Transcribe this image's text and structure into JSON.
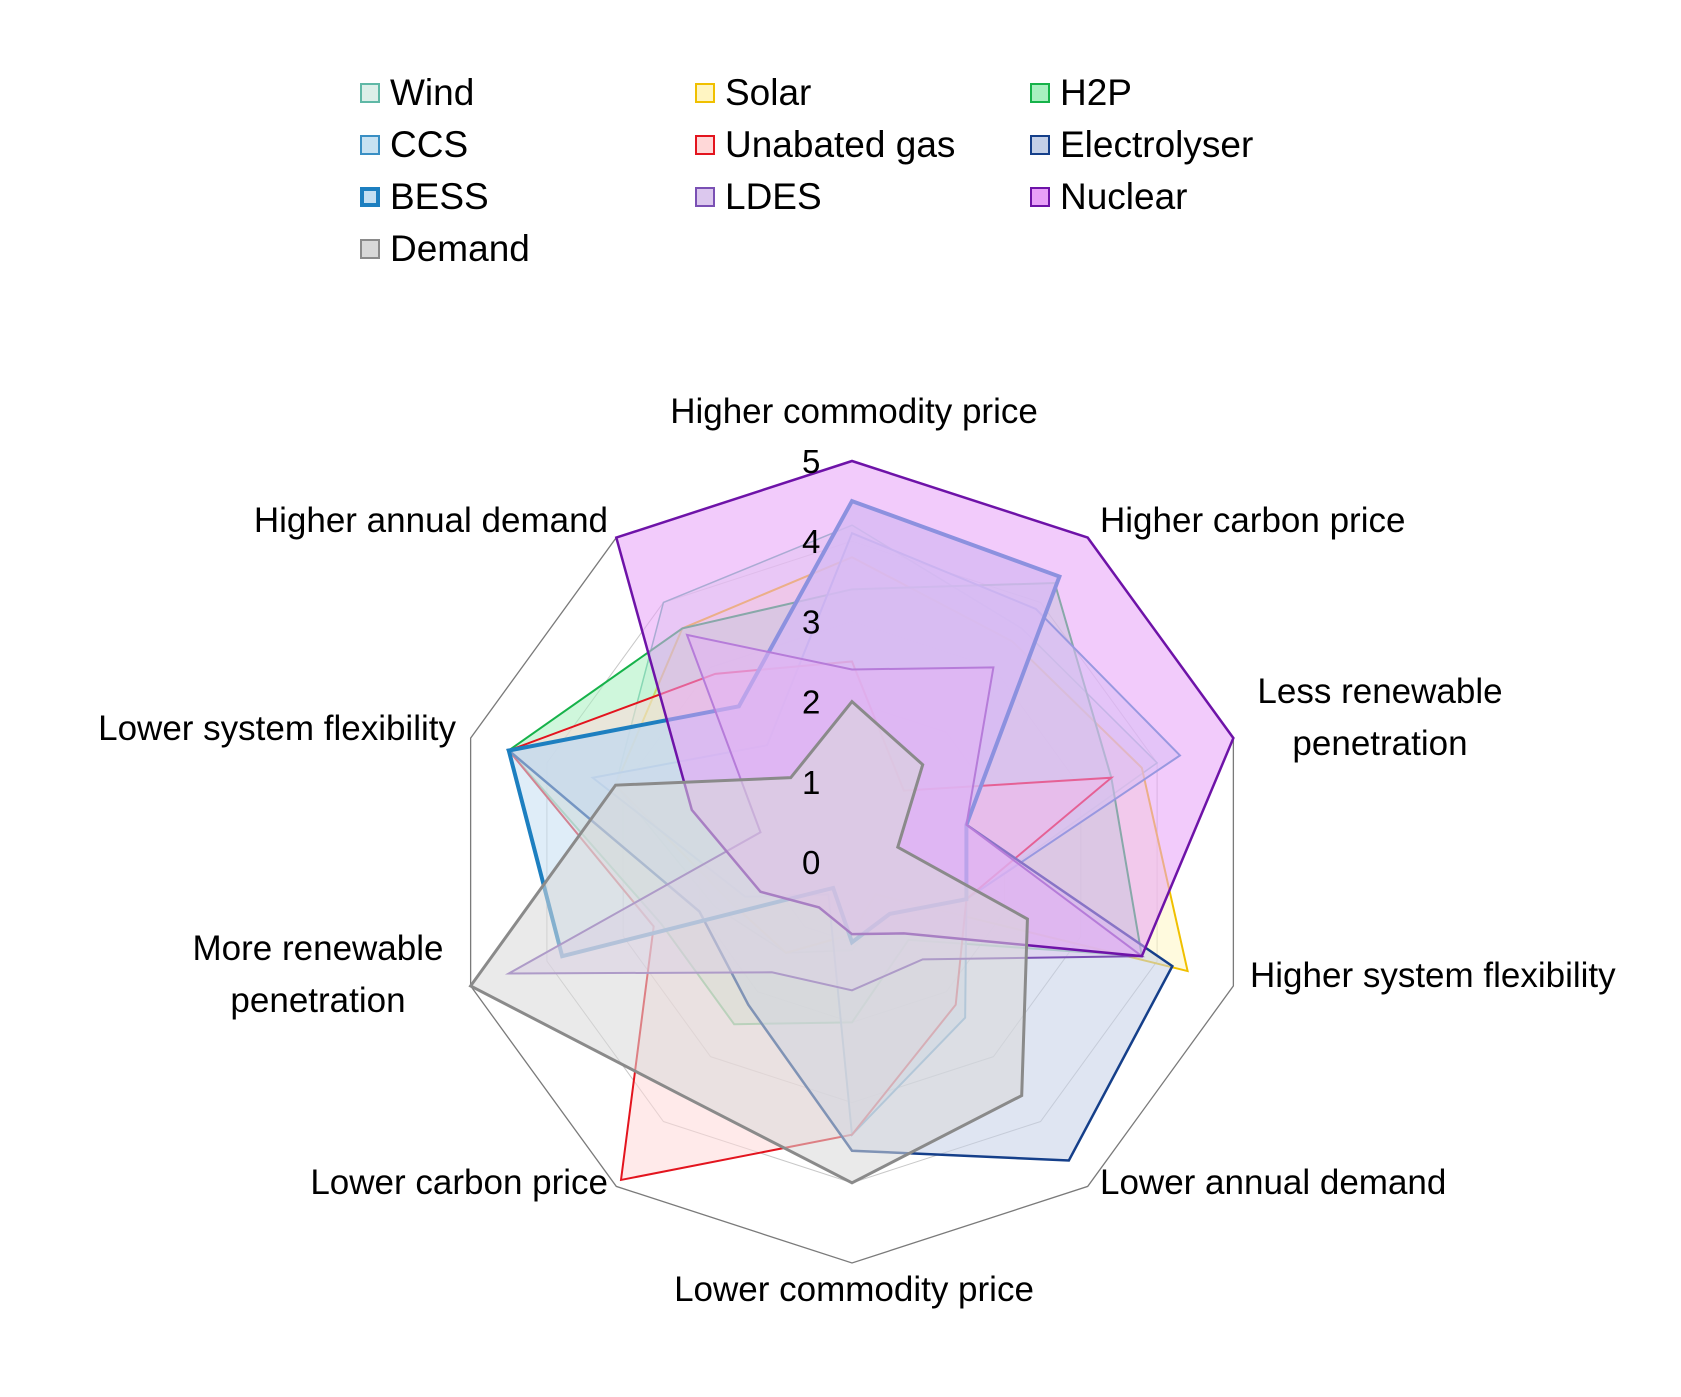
{
  "chart_data": {
    "type": "radar",
    "axes": [
      "Higher commodity price",
      "Higher carbon price",
      "Less renewable penetration",
      "Higher system flexibility",
      "Lower annual demand",
      "Lower commodity price",
      "Lower carbon price",
      "More renewable penetration",
      "Lower system flexibility",
      "Higher annual demand"
    ],
    "axis_label_lines": [
      [
        "Higher commodity price"
      ],
      [
        "Higher carbon price"
      ],
      [
        "Less renewable",
        "penetration"
      ],
      [
        "Higher system flexibility"
      ],
      [
        "Lower annual demand"
      ],
      [
        "Lower commodity price"
      ],
      [
        "Lower carbon price"
      ],
      [
        "More renewable",
        "penetration"
      ],
      [
        "Lower system flexibility"
      ],
      [
        "Higher annual demand"
      ]
    ],
    "rlim": [
      0,
      5
    ],
    "ticks": [
      "0",
      "1",
      "2",
      "3",
      "4",
      "5"
    ],
    "grid": true,
    "legend_position": "top",
    "series": [
      {
        "name": "Wind",
        "color": "#5fb8a6",
        "fill": "#dcefe9",
        "stroke_width": 1.5,
        "values": [
          4.2,
          3.6,
          4.0,
          1.5,
          0.7,
          1.1,
          1.4,
          1.8,
          3.1,
          4.0
        ]
      },
      {
        "name": "Solar",
        "color": "#f0c000",
        "fill": "#fff5c2",
        "stroke_width": 2,
        "values": [
          3.8,
          3.4,
          3.8,
          4.4,
          0.5,
          0.9,
          1.4,
          1.6,
          3.1,
          3.6
        ]
      },
      {
        "name": "H2P",
        "color": "#16b24a",
        "fill": "#a8f0c0",
        "stroke_width": 2,
        "values": [
          3.4,
          4.3,
          3.4,
          3.8,
          1.2,
          2.0,
          2.5,
          2.5,
          4.5,
          3.6
        ]
      },
      {
        "name": "CCS",
        "color": "#3a8fc4",
        "fill": "#c8e2f2",
        "stroke_width": 2,
        "values": [
          4.1,
          3.9,
          4.3,
          1.5,
          2.4,
          3.4,
          0.5,
          1.4,
          3.4,
          1.8
        ]
      },
      {
        "name": "Unabated gas",
        "color": "#e3141e",
        "fill": "#ffd8d8",
        "stroke_width": 2,
        "values": [
          2.5,
          1.1,
          3.4,
          1.5,
          2.2,
          3.4,
          4.9,
          2.6,
          4.5,
          2.9
        ]
      },
      {
        "name": "Electrolyser",
        "color": "#153f8a",
        "fill": "#c4d0e8",
        "stroke_width": 2.5,
        "values": [
          4.5,
          4.4,
          1.5,
          4.2,
          4.6,
          3.6,
          2.2,
          2.0,
          4.5,
          2.4
        ]
      },
      {
        "name": "BESS",
        "color": "#1d7fc0",
        "fill": "#c4dff2",
        "stroke_width": 4,
        "values": [
          4.5,
          4.4,
          1.5,
          1.5,
          0.8,
          1.0,
          0.4,
          3.8,
          4.5,
          2.4
        ]
      },
      {
        "name": "LDES",
        "color": "#7a50b4",
        "fill": "#dcc8ee",
        "stroke_width": 2,
        "values": [
          2.4,
          3.0,
          1.5,
          3.8,
          1.5,
          1.6,
          1.7,
          4.5,
          1.2,
          3.5
        ]
      },
      {
        "name": "Nuclear",
        "color": "#6e13a8",
        "fill": "#e8a0f8",
        "stroke_width": 2.5,
        "values": [
          5.0,
          5.0,
          5.0,
          3.8,
          1.1,
          0.9,
          0.7,
          1.2,
          2.1,
          5.0
        ]
      },
      {
        "name": "Demand",
        "color": "#8a8a8a",
        "fill": "#d8d8d8",
        "stroke_width": 3,
        "values": [
          2.0,
          1.5,
          0.6,
          2.3,
          3.6,
          4.0,
          3.6,
          5.0,
          3.1,
          1.3
        ]
      }
    ]
  }
}
